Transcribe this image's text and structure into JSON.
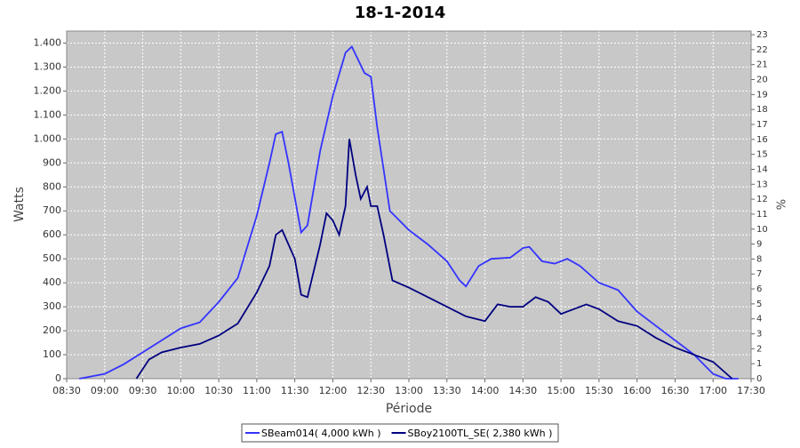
{
  "chart_data": {
    "type": "line",
    "title": "18-1-2014",
    "y_label": "Watts",
    "y2_label": "%",
    "x_label": "Période",
    "xlim": [
      "08:30",
      "17:30"
    ],
    "xticks": [
      "08:30",
      "09:00",
      "09:30",
      "10:00",
      "10:30",
      "11:00",
      "11:30",
      "12:00",
      "12:30",
      "13:00",
      "13:30",
      "14:00",
      "14:30",
      "15:00",
      "15:30",
      "16:00",
      "16:30",
      "17:00",
      "17:30"
    ],
    "ylim": [
      0,
      1450
    ],
    "yticks": [
      0,
      100,
      200,
      300,
      400,
      500,
      600,
      700,
      800,
      900,
      {
        "value": 1000,
        "label": "1.000"
      },
      {
        "value": 1100,
        "label": "1.100"
      },
      {
        "value": 1200,
        "label": "1.200"
      },
      {
        "value": 1300,
        "label": "1.300"
      },
      {
        "value": 1400,
        "label": "1.400"
      }
    ],
    "y2lim": [
      0,
      23.24
    ],
    "y2ticks": [
      0,
      1,
      2,
      3,
      4,
      5,
      6,
      7,
      8,
      9,
      10,
      11,
      12,
      13,
      14,
      15,
      16,
      17,
      18,
      19,
      20,
      21,
      22,
      23
    ],
    "grid": true,
    "series": [
      {
        "name": "SBeam014( 4,000 kWh )",
        "color": "#3333ff",
        "x": [
          "08:40",
          "09:00",
          "09:15",
          "09:30",
          "09:45",
          "10:00",
          "10:15",
          "10:30",
          "10:45",
          "11:00",
          "11:10",
          "11:15",
          "11:20",
          "11:25",
          "11:35",
          "11:40",
          "11:50",
          "12:00",
          "12:10",
          "12:15",
          "12:20",
          "12:25",
          "12:30",
          "12:35",
          "12:45",
          "13:00",
          "13:15",
          "13:30",
          "13:40",
          "13:45",
          "13:55",
          "14:05",
          "14:20",
          "14:30",
          "14:35",
          "14:45",
          "14:55",
          "15:05",
          "15:15",
          "15:30",
          "15:45",
          "16:00",
          "16:15",
          "16:30",
          "16:45",
          "17:00",
          "17:10",
          "17:20"
        ],
        "values": [
          0,
          20,
          60,
          110,
          160,
          210,
          235,
          320,
          420,
          680,
          900,
          1020,
          1030,
          900,
          610,
          640,
          950,
          1180,
          1360,
          1385,
          1330,
          1275,
          1260,
          1050,
          700,
          620,
          560,
          490,
          410,
          385,
          470,
          500,
          505,
          545,
          550,
          490,
          480,
          500,
          470,
          400,
          370,
          280,
          220,
          160,
          100,
          20,
          0,
          0
        ]
      },
      {
        "name": "SBoy2100TL_SE( 2,380 kWh )",
        "color": "#000080",
        "x": [
          "09:25",
          "09:35",
          "09:45",
          "10:00",
          "10:15",
          "10:30",
          "10:45",
          "11:00",
          "11:10",
          "11:15",
          "11:20",
          "11:30",
          "11:35",
          "11:40",
          "11:50",
          "11:55",
          "12:00",
          "12:05",
          "12:10",
          "12:13",
          "12:18",
          "12:22",
          "12:27",
          "12:30",
          "12:35",
          "12:40",
          "12:47",
          "13:00",
          "13:15",
          "13:30",
          "13:45",
          "14:00",
          "14:10",
          "14:20",
          "14:30",
          "14:40",
          "14:50",
          "15:00",
          "15:10",
          "15:20",
          "15:30",
          "15:45",
          "16:00",
          "16:15",
          "16:30",
          "16:45",
          "17:00",
          "17:15"
        ],
        "values": [
          0,
          80,
          110,
          130,
          145,
          180,
          230,
          360,
          470,
          600,
          620,
          500,
          350,
          340,
          560,
          690,
          660,
          600,
          720,
          1000,
          850,
          750,
          800,
          720,
          720,
          600,
          410,
          380,
          340,
          300,
          260,
          240,
          310,
          300,
          300,
          340,
          320,
          270,
          290,
          310,
          290,
          240,
          220,
          170,
          130,
          100,
          70,
          0
        ]
      }
    ]
  }
}
